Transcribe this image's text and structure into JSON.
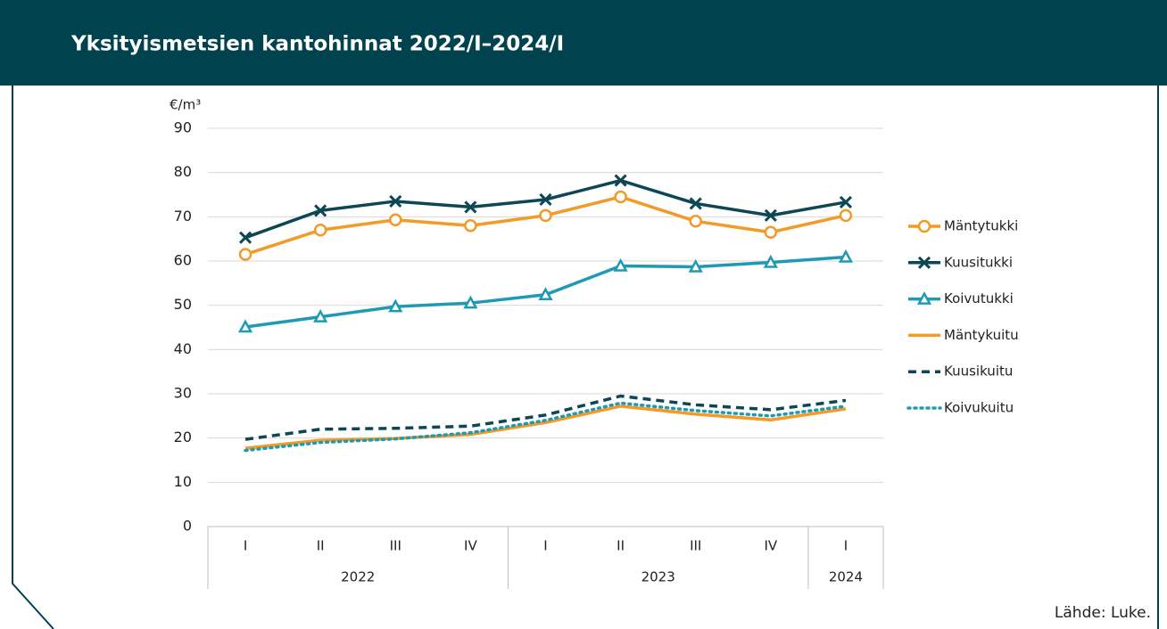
{
  "chart_data": {
    "type": "line",
    "title": "Yksityismetsien kantohinnat 2022/I–2024/I",
    "y_label": "€/m³",
    "source": "Lähde:  Luke.",
    "categories": [
      "I",
      "II",
      "III",
      "IV",
      "I",
      "II",
      "III",
      "IV",
      "I"
    ],
    "groups": [
      {
        "label": "2022",
        "count": 4
      },
      {
        "label": "2023",
        "count": 4
      },
      {
        "label": "2024",
        "count": 1
      }
    ],
    "ylim": [
      0,
      90
    ],
    "yticks": [
      0,
      10,
      20,
      30,
      40,
      50,
      60,
      70,
      80,
      90
    ],
    "grid": true,
    "legend": "right",
    "series": [
      {
        "name": "Mäntytukki",
        "color": "#f39a27",
        "marker": "circle",
        "dash": "solid",
        "values": [
          61.5,
          67,
          69.3,
          68,
          70.3,
          74.5,
          69,
          66.5,
          70.3
        ]
      },
      {
        "name": "Kuusitukki",
        "color": "#0d4655",
        "marker": "x",
        "dash": "solid",
        "values": [
          65.3,
          71.4,
          73.5,
          72.2,
          73.9,
          78.2,
          73,
          70.3,
          73.3
        ]
      },
      {
        "name": "Koivutukki",
        "color": "#1f9ab5",
        "marker": "triangle",
        "dash": "solid",
        "values": [
          45.1,
          47.4,
          49.7,
          50.5,
          52.4,
          58.9,
          58.7,
          59.7,
          60.9
        ]
      },
      {
        "name": "Mäntykuitu",
        "color": "#f39a27",
        "marker": "none",
        "dash": "solid",
        "values": [
          17.7,
          19.5,
          19.9,
          20.8,
          23.5,
          27.2,
          25.4,
          24.1,
          26.6
        ]
      },
      {
        "name": "Kuusikuitu",
        "color": "#0d4655",
        "marker": "none",
        "dash": "dashed",
        "values": [
          19.7,
          22,
          22.2,
          22.7,
          25.2,
          29.5,
          27.5,
          26.4,
          28.5
        ]
      },
      {
        "name": "Koivukuitu",
        "color": "#1f9ab5",
        "marker": "none",
        "dash": "dotted",
        "values": [
          17.2,
          19,
          19.8,
          21.2,
          24,
          27.9,
          26.2,
          25,
          27.2
        ]
      }
    ]
  }
}
